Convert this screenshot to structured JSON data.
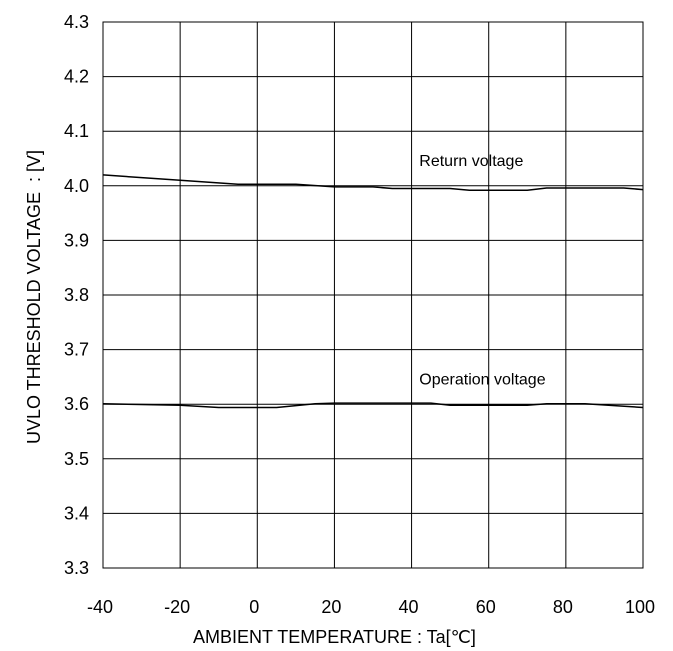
{
  "chart_data": {
    "type": "line",
    "title": "",
    "xlabel": "AMBIENT TEMPERATURE : Ta[℃]",
    "ylabel": "UVLO THRESHOLD VOLTAGE  : [V]",
    "xlim": [
      -40,
      100
    ],
    "ylim": [
      3.3,
      4.3
    ],
    "xticks": [
      -40,
      -20,
      0,
      20,
      40,
      60,
      80,
      100
    ],
    "yticks": [
      3.3,
      3.4,
      3.5,
      3.6,
      3.7,
      3.8,
      3.9,
      4.0,
      4.1,
      4.2,
      4.3
    ],
    "xtick_labels": [
      "-40",
      "-20",
      "0",
      "20",
      "40",
      "60",
      "80",
      "100"
    ],
    "ytick_labels": [
      "3.3",
      "3.4",
      "3.5",
      "3.6",
      "3.7",
      "3.8",
      "3.9",
      "4.0",
      "4.1",
      "4.2",
      "4.3"
    ],
    "x_gridlines": [
      -20,
      0,
      20,
      40,
      60,
      80
    ],
    "y_gridlines": [
      3.4,
      3.5,
      3.6,
      3.7,
      3.8,
      3.9,
      4.0,
      4.1,
      4.2
    ],
    "grid": true,
    "legend": "none",
    "series": [
      {
        "name": "Return voltage",
        "x": [
          -40,
          -20,
          -5,
          10,
          20,
          30,
          35,
          50,
          55,
          70,
          75,
          95,
          100
        ],
        "y": [
          4.02,
          4.01,
          4.003,
          4.003,
          3.998,
          3.998,
          3.995,
          3.995,
          3.992,
          3.992,
          3.996,
          3.996,
          3.993
        ]
      },
      {
        "name": "Operation voltage",
        "x": [
          -40,
          -20,
          -10,
          5,
          15,
          20,
          45,
          50,
          70,
          75,
          85,
          100
        ],
        "y": [
          3.601,
          3.598,
          3.594,
          3.594,
          3.601,
          3.602,
          3.602,
          3.598,
          3.598,
          3.601,
          3.601,
          3.594
        ]
      }
    ],
    "annotations": [
      {
        "text": "Return voltage",
        "x": 42,
        "y": 4.045
      },
      {
        "text": "Operation voltage",
        "x": 42,
        "y": 3.645
      }
    ]
  }
}
